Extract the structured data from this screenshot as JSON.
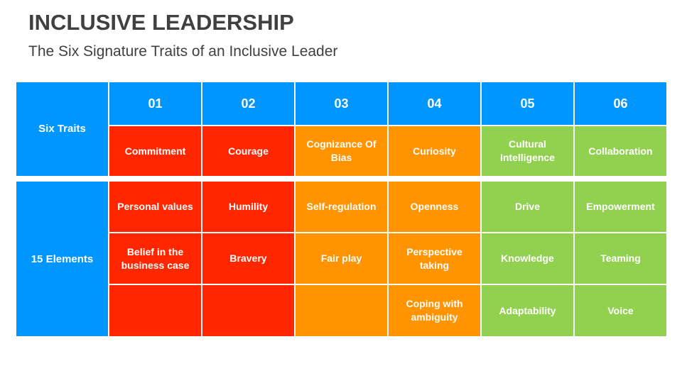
{
  "header": {
    "title": "INCLUSIVE LEADERSHIP",
    "subtitle": "The Six Signature Traits of an Inclusive Leader"
  },
  "colors": {
    "blue": "#0096FF",
    "red": "#FF2600",
    "orange": "#FF9300",
    "green": "#92D050",
    "title_text": "#404040"
  },
  "table": {
    "row_labels": {
      "traits": "Six Traits",
      "elements": "15 Elements"
    },
    "traits": [
      {
        "number": "01",
        "name": "Commitment",
        "color": "red",
        "elements": [
          "Personal values",
          "Belief in the business case",
          ""
        ]
      },
      {
        "number": "02",
        "name": "Courage",
        "color": "red",
        "elements": [
          "Humility",
          "Bravery",
          ""
        ]
      },
      {
        "number": "03",
        "name": "Cognizance Of Bias",
        "color": "orange",
        "elements": [
          "Self-regulation",
          "Fair play",
          ""
        ]
      },
      {
        "number": "04",
        "name": "Curiosity",
        "color": "orange",
        "elements": [
          "Openness",
          "Perspective taking",
          "Coping with ambiguity"
        ]
      },
      {
        "number": "05",
        "name": "Cultural Intelligence",
        "color": "green",
        "elements": [
          "Drive",
          "Knowledge",
          "Adaptability"
        ]
      },
      {
        "number": "06",
        "name": "Collaboration",
        "color": "green",
        "elements": [
          "Empowerment",
          "Teaming",
          "Voice"
        ]
      }
    ]
  }
}
